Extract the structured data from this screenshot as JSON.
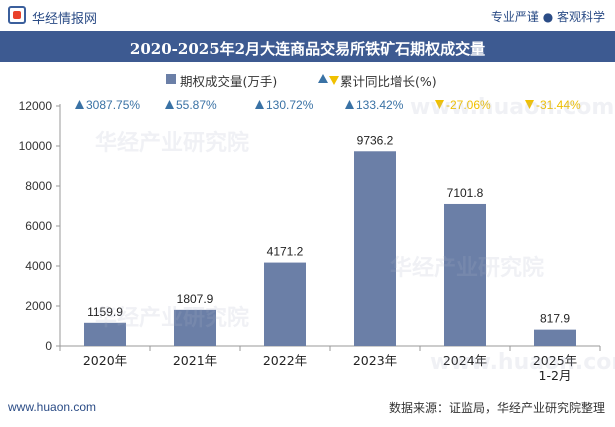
{
  "header": {
    "brand": "华经情报网",
    "tagline": "专业严谨 ● 客观科学",
    "title": "2020-2025年2月大连商品交易所铁矿石期权成交量"
  },
  "legend": {
    "bar_label": "期权成交量(万手)",
    "growth_label": "累计同比增长(%)"
  },
  "footer": {
    "site": "www.huaon.com",
    "source": "数据来源：证监局，华经产业研究院整理"
  },
  "watermarks": [
    "华经产业研究院",
    "www.huaon.com",
    "华经产业研究院",
    "华经产业研究院",
    "www.huaon.com"
  ],
  "colors": {
    "bar": "#6b7fa7",
    "growth_up": "#3a72a5",
    "growth_down": "#f0c000",
    "title_bg": "#3d5a91"
  },
  "chart_data": {
    "type": "bar",
    "title": "2020-2025年2月大连商品交易所铁矿石期权成交量",
    "categories": [
      "2020年",
      "2021年",
      "2022年",
      "2023年",
      "2024年",
      "2025年 1-2月"
    ],
    "category_lines": [
      [
        "2020年"
      ],
      [
        "2021年"
      ],
      [
        "2022年"
      ],
      [
        "2023年"
      ],
      [
        "2024年"
      ],
      [
        "2025年",
        "1-2月"
      ]
    ],
    "series": [
      {
        "name": "期权成交量(万手)",
        "values": [
          1159.9,
          1807.9,
          4171.2,
          9736.2,
          7101.8,
          817.9
        ]
      }
    ],
    "value_labels": [
      "1159.9",
      "1807.9",
      "4171.2",
      "9736.2",
      "7101.8",
      "817.9"
    ],
    "growth": {
      "name": "累计同比增长(%)",
      "values": [
        3087.75,
        55.87,
        130.72,
        133.42,
        -27.06,
        -31.44
      ],
      "labels": [
        "3087.75%",
        "55.87%",
        "130.72%",
        "133.42%",
        "-27.06%",
        "-31.44%"
      ]
    },
    "ylim": [
      0,
      12000
    ],
    "yticks": [
      0,
      2000,
      4000,
      6000,
      8000,
      10000,
      12000
    ],
    "ytick_labels": [
      "0",
      "2000",
      "4000",
      "6000",
      "8000",
      "10000",
      "12000"
    ],
    "xlabel": "",
    "ylabel": "",
    "grid": false,
    "legend_position": "top-center"
  }
}
